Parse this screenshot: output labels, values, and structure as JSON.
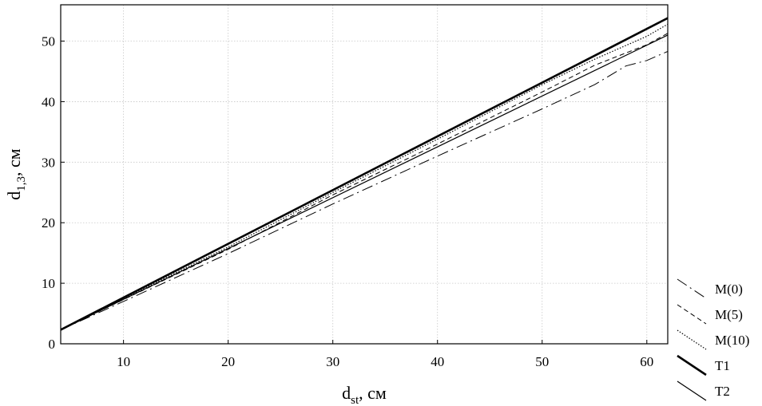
{
  "chart_data": {
    "type": "line",
    "xlabel": {
      "main": "d",
      "sub": "st",
      "unit": ", см"
    },
    "ylabel": {
      "main": "d",
      "sub": "1,3",
      "unit": ", см"
    },
    "xlim": [
      4,
      62
    ],
    "ylim": [
      0,
      56
    ],
    "xticks": [
      10,
      20,
      30,
      40,
      50,
      60
    ],
    "yticks": [
      0,
      10,
      20,
      30,
      40,
      50
    ],
    "grid": true,
    "legend_position": "bottom-right, outside plot",
    "series": [
      {
        "name": "M(0)",
        "style": "dashdot",
        "width": 1.0,
        "points": [
          [
            4,
            2.3
          ],
          [
            10,
            7.0
          ],
          [
            20,
            14.9
          ],
          [
            30,
            23.1
          ],
          [
            40,
            31.0
          ],
          [
            50,
            38.8
          ],
          [
            55,
            42.8
          ],
          [
            58,
            45.9
          ],
          [
            60,
            46.8
          ],
          [
            62,
            48.3
          ]
        ]
      },
      {
        "name": "M(5)",
        "style": "dashed",
        "width": 1.0,
        "points": [
          [
            4,
            2.3
          ],
          [
            10,
            7.3
          ],
          [
            20,
            15.6
          ],
          [
            30,
            24.6
          ],
          [
            40,
            33.0
          ],
          [
            50,
            41.6
          ],
          [
            55,
            46.0
          ],
          [
            60,
            49.4
          ],
          [
            62,
            51.3
          ]
        ]
      },
      {
        "name": "M(10)",
        "style": "dotted",
        "width": 1.2,
        "points": [
          [
            4,
            2.3
          ],
          [
            10,
            7.5
          ],
          [
            20,
            16.0
          ],
          [
            30,
            25.0
          ],
          [
            40,
            33.8
          ],
          [
            50,
            42.8
          ],
          [
            55,
            47.0
          ],
          [
            60,
            50.8
          ],
          [
            62,
            52.8
          ]
        ]
      },
      {
        "name": "T1",
        "style": "solid",
        "width": 2.6,
        "points": [
          [
            4,
            2.3
          ],
          [
            62,
            53.8
          ]
        ]
      },
      {
        "name": "T2",
        "style": "solid",
        "width": 1.2,
        "points": [
          [
            4,
            2.3
          ],
          [
            62,
            51.0
          ]
        ]
      }
    ]
  }
}
